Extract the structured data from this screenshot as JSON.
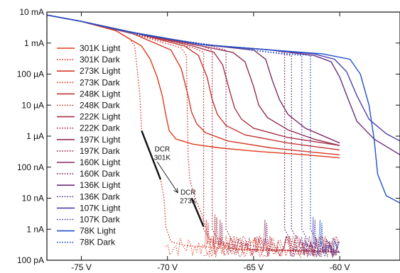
{
  "chart_data": {
    "type": "line",
    "title": "",
    "xlabel": "",
    "ylabel": "",
    "xlim": [
      -77,
      -56.5
    ],
    "ylim_log10": [
      -10,
      -2
    ],
    "y_scale": "log",
    "grid": false,
    "legend_position": "left",
    "x_ticks": [
      {
        "value": -75,
        "label": "-75 V"
      },
      {
        "value": -70,
        "label": "-70 V"
      },
      {
        "value": -65,
        "label": "-65 V"
      },
      {
        "value": -60,
        "label": "-60 V"
      }
    ],
    "y_ticks": [
      {
        "value": 0.01,
        "label": "10 mA"
      },
      {
        "value": 0.001,
        "label": "1 mA"
      },
      {
        "value": 0.0001,
        "label": "100 µA"
      },
      {
        "value": 1e-05,
        "label": "10 µA"
      },
      {
        "value": 1e-06,
        "label": "1 µA"
      },
      {
        "value": 1e-07,
        "label": "100 nA"
      },
      {
        "value": 1e-08,
        "label": "10 nA"
      },
      {
        "value": 1e-09,
        "label": "1 nA"
      },
      {
        "value": 1e-10,
        "label": "100 pA"
      }
    ],
    "series": [
      {
        "name": "301K Light",
        "color": "#e03a1e",
        "dash": "solid",
        "points": [
          [
            -77,
            0.008
          ],
          [
            -75,
            0.005
          ],
          [
            -73,
            0.0025
          ],
          [
            -71.5,
            0.0008
          ],
          [
            -71,
            0.0003
          ],
          [
            -70.6,
            8e-05
          ],
          [
            -70.3,
            2e-05
          ],
          [
            -70.1,
            5e-06
          ],
          [
            -69.9,
            1.5e-06
          ],
          [
            -69.5,
            8e-07
          ],
          [
            -68.5,
            5.5e-07
          ],
          [
            -67,
            4.2e-07
          ],
          [
            -65,
            3.3e-07
          ],
          [
            -62,
            2.5e-07
          ],
          [
            -60,
            2e-07
          ]
        ]
      },
      {
        "name": "301K Dark",
        "color": "#e03a1e",
        "dash": "dotted",
        "points": [
          [
            -77,
            0.008
          ],
          [
            -75,
            0.005
          ],
          [
            -73,
            0.0025
          ],
          [
            -72.2,
            0.0014
          ],
          [
            -71.9,
            0.0008
          ],
          [
            -71.6,
            2e-05
          ],
          [
            -71.5,
            1.5e-06
          ],
          [
            -71.2,
            5e-07
          ],
          [
            -70.8,
            1.5e-07
          ],
          [
            -70.4,
            4e-08
          ],
          [
            -70.2,
            1e-08
          ],
          [
            -70.1,
            1.2e-09
          ],
          [
            -69.8,
            4e-10
          ],
          [
            -69,
            3e-10
          ],
          [
            -67,
            2.5e-10
          ],
          [
            -65,
            2.2e-10
          ],
          [
            -62,
            2e-10
          ],
          [
            -60,
            1.8e-10
          ]
        ]
      },
      {
        "name": "273K Light",
        "color": "#d43826",
        "dash": "solid",
        "points": [
          [
            -77,
            0.008
          ],
          [
            -75,
            0.005
          ],
          [
            -72,
            0.002
          ],
          [
            -69.8,
            0.0006
          ],
          [
            -69.2,
            0.00015
          ],
          [
            -68.8,
            2e-05
          ],
          [
            -68.6,
            6e-06
          ],
          [
            -68.3,
            2.5e-06
          ],
          [
            -67.8,
            1.3e-06
          ],
          [
            -66.5,
            7e-07
          ],
          [
            -64,
            4.2e-07
          ],
          [
            -62,
            3.2e-07
          ],
          [
            -60,
            2.5e-07
          ]
        ]
      },
      {
        "name": "273K Dark",
        "color": "#d43826",
        "dash": "dotted",
        "points": [
          [
            -77,
            0.008
          ],
          [
            -75,
            0.005
          ],
          [
            -72,
            0.002
          ],
          [
            -69.2,
            0.0007
          ],
          [
            -68.9,
            0.0004
          ],
          [
            -68.8,
            2e-07
          ],
          [
            -68.7,
            4e-08
          ],
          [
            -68.4,
            1e-08
          ],
          [
            -68,
            3e-09
          ],
          [
            -67.8,
            1.2e-09
          ],
          [
            -67.5,
            4e-10
          ],
          [
            -66,
            2.2e-10
          ],
          [
            -63,
            2e-10
          ],
          [
            -60,
            1.8e-10
          ]
        ]
      },
      {
        "name": "248K Light",
        "color": "#c23534",
        "dash": "solid",
        "points": [
          [
            -77,
            0.008
          ],
          [
            -75,
            0.005
          ],
          [
            -72,
            0.0022
          ],
          [
            -69,
            0.0008
          ],
          [
            -68.2,
            0.0004
          ],
          [
            -67.7,
            8e-05
          ],
          [
            -67.4,
            1.5e-05
          ],
          [
            -67.1,
            5e-06
          ],
          [
            -66.6,
            2.2e-06
          ],
          [
            -65.5,
            1.1e-06
          ],
          [
            -63,
            6e-07
          ],
          [
            -60,
            3.6e-07
          ]
        ]
      },
      {
        "name": "248K Dark",
        "color": "#c23534",
        "dash": "dotted",
        "points": [
          [
            -77,
            0.008
          ],
          [
            -75,
            0.005
          ],
          [
            -72,
            0.002
          ],
          [
            -68.5,
            0.0007
          ],
          [
            -67.9,
            0.0005
          ],
          [
            -67.9,
            1e-09
          ],
          [
            -67.6,
            5e-10
          ],
          [
            -66,
            2.2e-10
          ],
          [
            -62,
            2e-10
          ],
          [
            -60,
            1.8e-10
          ]
        ]
      },
      {
        "name": "222K Light",
        "color": "#a83244",
        "dash": "solid",
        "points": [
          [
            -77,
            0.008
          ],
          [
            -75,
            0.005
          ],
          [
            -72,
            0.0022
          ],
          [
            -68.5,
            0.0008
          ],
          [
            -67.3,
            0.0005
          ],
          [
            -66.8,
            0.0002
          ],
          [
            -66.4,
            3e-05
          ],
          [
            -66.1,
            8e-06
          ],
          [
            -65.7,
            3.5e-06
          ],
          [
            -65,
            1.8e-06
          ],
          [
            -63,
            9e-07
          ],
          [
            -60,
            5e-07
          ]
        ]
      },
      {
        "name": "222K Dark",
        "color": "#a83244",
        "dash": "dotted",
        "points": [
          [
            -77,
            0.008
          ],
          [
            -75,
            0.005
          ],
          [
            -72,
            0.002
          ],
          [
            -68,
            0.0008
          ],
          [
            -67.4,
            0.0006
          ],
          [
            -67.4,
            1e-09
          ],
          [
            -67,
            4e-10
          ],
          [
            -65,
            2.2e-10
          ],
          [
            -62,
            2e-10
          ],
          [
            -60,
            1.8e-10
          ]
        ]
      },
      {
        "name": "197K Light",
        "color": "#922f55",
        "dash": "solid",
        "points": [
          [
            -77,
            0.008
          ],
          [
            -75,
            0.005
          ],
          [
            -72,
            0.0022
          ],
          [
            -68,
            0.0008
          ],
          [
            -66.2,
            0.0005
          ],
          [
            -65.5,
            0.00025
          ],
          [
            -65,
            4e-05
          ],
          [
            -64.7,
            1e-05
          ],
          [
            -64.2,
            4e-06
          ],
          [
            -63,
            1.6e-06
          ],
          [
            -61.5,
            8e-07
          ],
          [
            -60,
            5e-07
          ]
        ]
      },
      {
        "name": "197K Dark",
        "color": "#922f55",
        "dash": "dotted",
        "points": [
          [
            -77,
            0.008
          ],
          [
            -75,
            0.005
          ],
          [
            -72,
            0.002
          ],
          [
            -67.5,
            0.0008
          ],
          [
            -66.6,
            0.0006
          ],
          [
            -66.6,
            1e-09
          ],
          [
            -66.2,
            4e-10
          ],
          [
            -64,
            2.2e-10
          ],
          [
            -61,
            2e-10
          ],
          [
            -60,
            1.8e-10
          ]
        ]
      },
      {
        "name": "160K Light",
        "color": "#7e2c66",
        "dash": "solid",
        "points": [
          [
            -77,
            0.008
          ],
          [
            -75,
            0.005
          ],
          [
            -72,
            0.0022
          ],
          [
            -68,
            0.0009
          ],
          [
            -65,
            0.0006
          ],
          [
            -64.3,
            0.0003
          ],
          [
            -63.9,
            6e-05
          ],
          [
            -63.5,
            1.5e-05
          ],
          [
            -63,
            5e-06
          ],
          [
            -62,
            1.8e-06
          ],
          [
            -60,
            6e-07
          ]
        ]
      },
      {
        "name": "160K Dark",
        "color": "#7e2c66",
        "dash": "dotted",
        "points": [
          [
            -77,
            0.008
          ],
          [
            -75,
            0.005
          ],
          [
            -72,
            0.002
          ],
          [
            -67,
            0.0008
          ],
          [
            -64,
            0.0006
          ],
          [
            -63.2,
            0.0005
          ],
          [
            -63.2,
            1e-09
          ],
          [
            -62.8,
            4e-10
          ],
          [
            -61,
            2.2e-10
          ],
          [
            -60,
            1.8e-10
          ]
        ]
      },
      {
        "name": "136K Light",
        "color": "#6c2d80",
        "dash": "solid",
        "points": [
          [
            -77,
            0.008
          ],
          [
            -75,
            0.005
          ],
          [
            -72,
            0.0022
          ],
          [
            -68,
            0.0009
          ],
          [
            -64,
            0.0006
          ],
          [
            -61.5,
            0.0004
          ],
          [
            -60.5,
            0.00025
          ],
          [
            -60,
            8e-05
          ],
          [
            -59.5,
            1.5e-05
          ],
          [
            -59,
            3e-06
          ],
          [
            -58,
            8e-07
          ],
          [
            -56.5,
            2.5e-07
          ]
        ]
      },
      {
        "name": "136K Dark",
        "color": "#5f3a9a",
        "dash": "dotted",
        "points": [
          [
            -77,
            0.008
          ],
          [
            -75,
            0.005
          ],
          [
            -72,
            0.002
          ],
          [
            -67,
            0.0008
          ],
          [
            -64,
            0.0005
          ],
          [
            -62.8,
            0.0004
          ],
          [
            -62.8,
            1e-09
          ],
          [
            -62.4,
            4e-10
          ],
          [
            -61,
            2.2e-10
          ],
          [
            -60,
            1.8e-10
          ]
        ]
      },
      {
        "name": "107K Light",
        "color": "#4d3fae",
        "dash": "solid",
        "points": [
          [
            -77,
            0.008
          ],
          [
            -75,
            0.005
          ],
          [
            -72,
            0.0022
          ],
          [
            -68,
            0.0009
          ],
          [
            -64,
            0.0006
          ],
          [
            -61.5,
            0.00045
          ],
          [
            -60.3,
            0.0003
          ],
          [
            -59.6,
            0.00012
          ],
          [
            -59,
            2e-05
          ],
          [
            -58.3,
            3.5e-06
          ],
          [
            -57.3,
            1.2e-06
          ],
          [
            -56.5,
            7e-07
          ]
        ]
      },
      {
        "name": "107K Dark",
        "color": "#4d3fae",
        "dash": "dotted",
        "points": [
          [
            -77,
            0.008
          ],
          [
            -75,
            0.005
          ],
          [
            -72,
            0.002
          ],
          [
            -67,
            0.0008
          ],
          [
            -64,
            0.0005
          ],
          [
            -62.2,
            0.0004
          ],
          [
            -62.2,
            1e-09
          ],
          [
            -61.8,
            4e-10
          ],
          [
            -60,
            1.8e-10
          ]
        ]
      },
      {
        "name": "78K Light",
        "color": "#1f50c9",
        "dash": "solid",
        "points": [
          [
            -77,
            0.008
          ],
          [
            -75,
            0.005
          ],
          [
            -72,
            0.0022
          ],
          [
            -68,
            0.0009
          ],
          [
            -64,
            0.0006
          ],
          [
            -61,
            0.00045
          ],
          [
            -59.4,
            0.0003
          ],
          [
            -58.8,
            0.0001
          ],
          [
            -58.3,
            1e-05
          ],
          [
            -58,
            8e-07
          ],
          [
            -57.8,
            6e-08
          ],
          [
            -57.3,
            1.2e-08
          ],
          [
            -56.5,
            7e-09
          ]
        ]
      },
      {
        "name": "78K Dark",
        "color": "#1f50c9",
        "dash": "dotted",
        "points": [
          [
            -77,
            0.008
          ],
          [
            -75,
            0.005
          ],
          [
            -72,
            0.002
          ],
          [
            -67,
            0.0008
          ],
          [
            -64,
            0.0005
          ],
          [
            -61.7,
            0.0004
          ],
          [
            -61.7,
            1e-09
          ],
          [
            -61.3,
            4e-10
          ],
          [
            -60,
            1.8e-10
          ]
        ]
      }
    ],
    "noise_bursts": [
      {
        "x": -67.7,
        "y": 2e-09,
        "color": "#c23534"
      },
      {
        "x": -67.2,
        "y": 3e-09,
        "color": "#a83244"
      },
      {
        "x": -66.9,
        "y": 2e-09,
        "color": "#922f55"
      },
      {
        "x": -64.3,
        "y": 2e-09,
        "color": "#7e2c66"
      },
      {
        "x": -61.5,
        "y": 2.5e-09,
        "color": "#4d3fae"
      },
      {
        "x": -61.1,
        "y": 2e-09,
        "color": "#1f50c9"
      }
    ],
    "annotations": [
      {
        "text_lines": [
          "DCR",
          "301K"
        ],
        "text_at": {
          "x": -70.3,
          "y": 3.2e-07
        },
        "line_from": {
          "x": -71.5,
          "y": 1.5e-06
        },
        "line_to": {
          "x": -70.4,
          "y": 4e-08
        }
      },
      {
        "text_lines": [
          "DCR",
          "273K"
        ],
        "text_at": {
          "x": -68.8,
          "y": 1.3e-08
        },
        "line_from": {
          "x": -68.6,
          "y": 1e-08
        },
        "line_to": {
          "x": -67.9,
          "y": 1.2e-09
        }
      }
    ],
    "arrow": {
      "from": {
        "x": -70.6,
        "y": 1.5e-07
      },
      "to": {
        "x": -69.4,
        "y": 1.5e-08
      }
    }
  }
}
